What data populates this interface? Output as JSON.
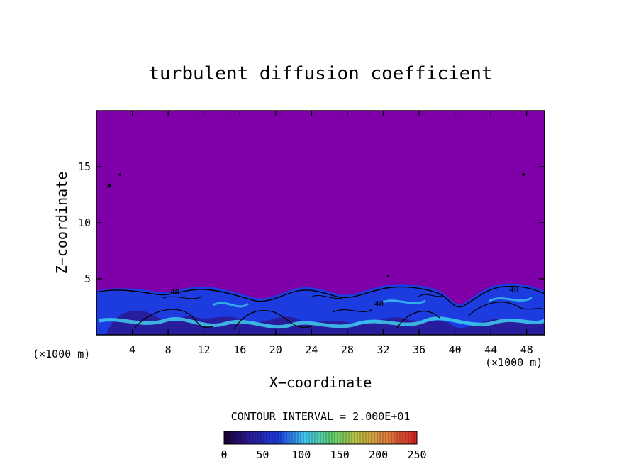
{
  "chart_data": {
    "type": "heatmap",
    "title": "turbulent diffusion coefficient",
    "xlabel": "X−coordinate",
    "ylabel": "Z−coordinate",
    "x_unit_left": "(×1000 m)",
    "x_unit_right": "(×1000 m)",
    "x_ticks": [
      4,
      8,
      12,
      16,
      20,
      24,
      28,
      32,
      36,
      40,
      44,
      48
    ],
    "y_ticks": [
      5,
      10,
      15
    ],
    "xlim": [
      0,
      50
    ],
    "ylim": [
      0,
      20
    ],
    "contour_interval_label": "CONTOUR INTERVAL = 2.000E+01",
    "contour_inline_labels": [
      "40",
      "40",
      "40"
    ],
    "colorbar": {
      "range": [
        0,
        250
      ],
      "tick_values": [
        0,
        50,
        100,
        150,
        200,
        250
      ],
      "tick_labels": [
        "0",
        "50",
        "100",
        "150",
        "200",
        "250"
      ]
    },
    "colors": {
      "background_field": "#7f00a8",
      "low": "#2a1890",
      "mid_low": "#1c3ce0",
      "mid": "#2a8cf0",
      "cyan": "#40d8f0",
      "contour": "#000000"
    }
  }
}
